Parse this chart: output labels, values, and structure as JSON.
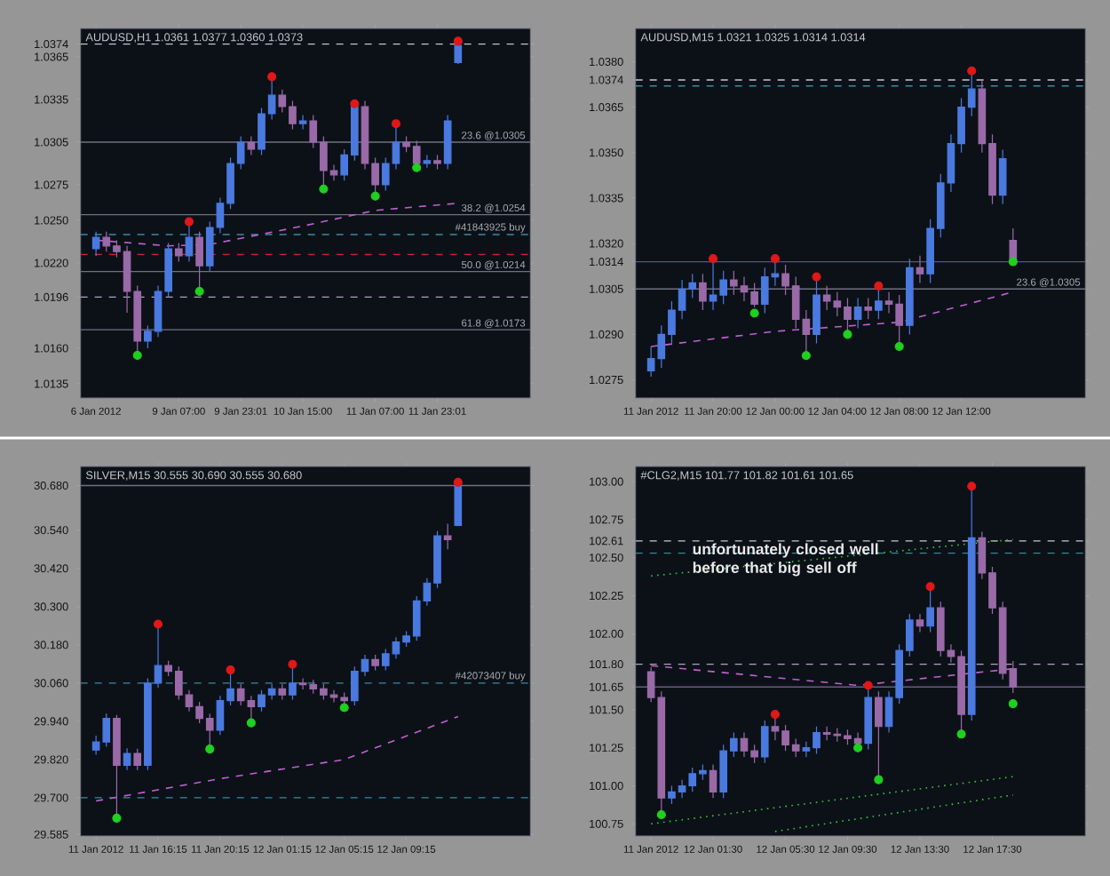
{
  "chart_data": [
    {
      "type": "candlestick",
      "title": "AUDUSD,H1  1.0361 1.0377 1.0360 1.0373",
      "categories": [
        "6 Jan 2012",
        null,
        null,
        null,
        null,
        null,
        null,
        null,
        "9 Jan 07:00",
        null,
        null,
        null,
        null,
        null,
        "9 Jan 23:01",
        null,
        null,
        null,
        null,
        null,
        "10 Jan 15:00",
        null,
        null,
        null,
        null,
        null,
        null,
        "11 Jan 07:00",
        null,
        null,
        null,
        null,
        null,
        "11 Jan 23:01",
        null,
        null
      ],
      "ohlc": [
        [
          1.023,
          1.0242,
          1.0225,
          1.0238
        ],
        [
          1.0238,
          1.0242,
          1.0228,
          1.0232
        ],
        [
          1.0232,
          1.0236,
          1.0224,
          1.0228
        ],
        [
          1.0228,
          1.0232,
          1.0185,
          1.02
        ],
        [
          1.02,
          1.0204,
          1.0155,
          1.0165
        ],
        [
          1.0165,
          1.0176,
          1.016,
          1.0172
        ],
        [
          1.0172,
          1.0204,
          1.0168,
          1.02
        ],
        [
          1.02,
          1.0234,
          1.0196,
          1.023
        ],
        [
          1.023,
          1.0234,
          1.0221,
          1.0225
        ],
        [
          1.0225,
          1.0249,
          1.0221,
          1.0238
        ],
        [
          1.0238,
          1.0242,
          1.02,
          1.0218
        ],
        [
          1.0218,
          1.0249,
          1.0214,
          1.0245
        ],
        [
          1.0245,
          1.0266,
          1.0241,
          1.0262
        ],
        [
          1.0262,
          1.0294,
          1.0258,
          1.029
        ],
        [
          1.029,
          1.0309,
          1.0286,
          1.0305
        ],
        [
          1.0305,
          1.0309,
          1.0296,
          1.03
        ],
        [
          1.03,
          1.0329,
          1.0296,
          1.0325
        ],
        [
          1.0325,
          1.0351,
          1.0321,
          1.0338
        ],
        [
          1.0338,
          1.0342,
          1.0326,
          1.033
        ],
        [
          1.033,
          1.0334,
          1.0314,
          1.0318
        ],
        [
          1.0318,
          1.0324,
          1.0314,
          1.032
        ],
        [
          1.032,
          1.0324,
          1.0301,
          1.0305
        ],
        [
          1.0305,
          1.0309,
          1.0272,
          1.0285
        ],
        [
          1.0285,
          1.0289,
          1.0278,
          1.0282
        ],
        [
          1.0282,
          1.03,
          1.0278,
          1.0296
        ],
        [
          1.0296,
          1.0332,
          1.0292,
          1.033
        ],
        [
          1.033,
          1.0334,
          1.0286,
          1.029
        ],
        [
          1.029,
          1.0294,
          1.0267,
          1.0275
        ],
        [
          1.0275,
          1.0294,
          1.0271,
          1.029
        ],
        [
          1.029,
          1.0318,
          1.0286,
          1.0305
        ],
        [
          1.0305,
          1.0309,
          1.0298,
          1.0302
        ],
        [
          1.0302,
          1.0306,
          1.0287,
          1.029
        ],
        [
          1.029,
          1.0296,
          1.0287,
          1.0292
        ],
        [
          1.0292,
          1.0296,
          1.0286,
          1.029
        ],
        [
          1.029,
          1.0324,
          1.0286,
          1.032
        ],
        [
          1.0361,
          1.0377,
          1.036,
          1.0373
        ]
      ],
      "colors": [
        "#4a7ae0",
        "#9a6aa8",
        "#9a6aa8",
        "#9a6aa8",
        "#9a6aa8",
        "#4a7ae0",
        "#4a7ae0",
        "#4a7ae0",
        "#9a6aa8",
        "#4a7ae0",
        "#9a6aa8",
        "#4a7ae0",
        "#4a7ae0",
        "#4a7ae0",
        "#4a7ae0",
        "#9a6aa8",
        "#4a7ae0",
        "#4a7ae0",
        "#9a6aa8",
        "#9a6aa8",
        "#4a7ae0",
        "#9a6aa8",
        "#9a6aa8",
        "#9a6aa8",
        "#4a7ae0",
        "#4a7ae0",
        "#9a6aa8",
        "#9a6aa8",
        "#4a7ae0",
        "#4a7ae0",
        "#9a6aa8",
        "#9a6aa8",
        "#4a7ae0",
        "#9a6aa8",
        "#4a7ae0",
        "#4a7ae0"
      ],
      "series": [
        {
          "type": "scatter",
          "marker": "circle",
          "color": "#e01818",
          "values": [
            null,
            null,
            null,
            null,
            null,
            null,
            null,
            null,
            null,
            1.0249,
            null,
            null,
            null,
            null,
            null,
            null,
            null,
            1.0351,
            null,
            null,
            null,
            null,
            null,
            null,
            null,
            1.0332,
            null,
            null,
            null,
            1.0318,
            null,
            null,
            null,
            null,
            null,
            1.0376
          ]
        },
        {
          "type": "scatter",
          "marker": "circle",
          "color": "#20d020",
          "values": [
            null,
            null,
            null,
            null,
            1.0155,
            null,
            null,
            null,
            null,
            null,
            1.02,
            null,
            null,
            null,
            null,
            null,
            null,
            null,
            null,
            null,
            null,
            null,
            1.0272,
            null,
            null,
            null,
            null,
            1.0267,
            null,
            null,
            null,
            1.0287,
            null,
            null,
            null,
            null
          ]
        },
        {
          "type": "line",
          "line_style": "dashed",
          "color": "#c060d0",
          "values": [
            1.0236,
            null,
            null,
            null,
            null,
            null,
            null,
            1.0232,
            null,
            null,
            null,
            1.0233,
            null,
            null,
            null,
            null,
            null,
            null,
            null,
            null,
            1.0246,
            null,
            null,
            null,
            null,
            null,
            null,
            1.0257,
            null,
            null,
            null,
            null,
            null,
            null,
            null,
            1.0262
          ]
        }
      ],
      "ylim": [
        1.0125,
        1.0385
      ],
      "yticks": [
        {
          "value": 1.0135,
          "label": "1.0135"
        },
        {
          "value": 1.016,
          "label": "1.0160"
        },
        {
          "value": 1.0196,
          "label": "1.0196"
        },
        {
          "value": 1.022,
          "label": "1.0220"
        },
        {
          "value": 1.025,
          "label": "1.0250"
        },
        {
          "value": 1.0275,
          "label": "1.0275"
        },
        {
          "value": 1.0305,
          "label": "1.0305"
        },
        {
          "value": 1.0335,
          "label": "1.0335"
        },
        {
          "value": 1.0365,
          "label": "1.0365"
        },
        {
          "value": 1.0374,
          "label": "1.0374"
        }
      ],
      "ref_lines": [
        {
          "axis": "y",
          "value": 1.0374,
          "color": "#c8c8d8",
          "line_style": "dashed"
        },
        {
          "axis": "y",
          "value": 1.0305,
          "label": "23.6  @1.0305",
          "color": "#707080",
          "line_style": "solid"
        },
        {
          "axis": "y",
          "value": 1.0254,
          "label": "38.2  @1.0254",
          "color": "#707080",
          "line_style": "solid"
        },
        {
          "axis": "y",
          "value": 1.0214,
          "label": "50.0  @1.0214",
          "color": "#707080",
          "line_style": "solid"
        },
        {
          "axis": "y",
          "value": 1.0173,
          "label": "61.8  @1.0173",
          "color": "#707080",
          "line_style": "solid"
        },
        {
          "axis": "y",
          "value": 1.0196,
          "color": "#b0a0c0",
          "line_style": "dashed"
        },
        {
          "axis": "y",
          "value": 1.024,
          "label": "#41843925 buy",
          "color": "#3a8aa0",
          "line_style": "dashed"
        },
        {
          "axis": "y",
          "value": 1.0226,
          "color": "#d02030",
          "line_style": "dashed"
        }
      ]
    },
    {
      "type": "candlestick",
      "title": "AUDUSD,M15  1.0321 1.0325 1.0314 1.0314",
      "categories": [
        "11 Jan 2012",
        null,
        null,
        null,
        null,
        null,
        "11 Jan 20:00",
        null,
        null,
        null,
        null,
        null,
        "12 Jan 00:00",
        null,
        null,
        null,
        null,
        null,
        "12 Jan 04:00",
        null,
        null,
        null,
        null,
        null,
        "12 Jan 08:00",
        null,
        null,
        null,
        null,
        null,
        "12 Jan 12:00",
        null,
        null,
        null,
        null,
        null
      ],
      "ohlc": [
        [
          1.0278,
          1.0286,
          1.0276,
          1.0282
        ],
        [
          1.0282,
          1.0293,
          1.0279,
          1.029
        ],
        [
          1.029,
          1.0301,
          1.0287,
          1.0298
        ],
        [
          1.0298,
          1.0308,
          1.0295,
          1.0305
        ],
        [
          1.0305,
          1.031,
          1.0302,
          1.0307
        ],
        [
          1.0307,
          1.031,
          1.0298,
          1.0301
        ],
        [
          1.0301,
          1.0315,
          1.0298,
          1.0303
        ],
        [
          1.0303,
          1.0311,
          1.03,
          1.0308
        ],
        [
          1.0308,
          1.0311,
          1.0303,
          1.0306
        ],
        [
          1.0306,
          1.0309,
          1.0301,
          1.0304
        ],
        [
          1.0304,
          1.0307,
          1.0299,
          1.03
        ],
        [
          1.03,
          1.0312,
          1.0297,
          1.0309
        ],
        [
          1.0309,
          1.0315,
          1.0306,
          1.031
        ],
        [
          1.031,
          1.0313,
          1.0303,
          1.0306
        ],
        [
          1.0306,
          1.0309,
          1.0292,
          1.0295
        ],
        [
          1.0295,
          1.0298,
          1.0283,
          1.029
        ],
        [
          1.029,
          1.0309,
          1.0287,
          1.0303
        ],
        [
          1.0303,
          1.0306,
          1.0298,
          1.0301
        ],
        [
          1.0301,
          1.0304,
          1.0296,
          1.0299
        ],
        [
          1.0299,
          1.0302,
          1.029,
          1.0295
        ],
        [
          1.0295,
          1.0302,
          1.0292,
          1.0299
        ],
        [
          1.0299,
          1.0302,
          1.0295,
          1.0298
        ],
        [
          1.0298,
          1.0306,
          1.0295,
          1.0301
        ],
        [
          1.0301,
          1.0304,
          1.0297,
          1.03
        ],
        [
          1.03,
          1.0303,
          1.0286,
          1.0293
        ],
        [
          1.0293,
          1.0315,
          1.029,
          1.0312
        ],
        [
          1.0312,
          1.0316,
          1.0307,
          1.031
        ],
        [
          1.031,
          1.0328,
          1.0307,
          1.0325
        ],
        [
          1.0325,
          1.0343,
          1.0322,
          1.034
        ],
        [
          1.034,
          1.0356,
          1.0337,
          1.0353
        ],
        [
          1.0353,
          1.0368,
          1.035,
          1.0365
        ],
        [
          1.0365,
          1.0377,
          1.0362,
          1.0371
        ],
        [
          1.0371,
          1.0374,
          1.035,
          1.0353
        ],
        [
          1.0353,
          1.0356,
          1.0333,
          1.0336
        ],
        [
          1.0336,
          1.0351,
          1.0333,
          1.0348
        ],
        [
          1.0321,
          1.0325,
          1.0314,
          1.0314
        ]
      ],
      "colors": [
        "#4a7ae0",
        "#4a7ae0",
        "#4a7ae0",
        "#4a7ae0",
        "#4a7ae0",
        "#9a6aa8",
        "#4a7ae0",
        "#4a7ae0",
        "#9a6aa8",
        "#9a6aa8",
        "#9a6aa8",
        "#4a7ae0",
        "#4a7ae0",
        "#9a6aa8",
        "#9a6aa8",
        "#9a6aa8",
        "#4a7ae0",
        "#9a6aa8",
        "#9a6aa8",
        "#9a6aa8",
        "#4a7ae0",
        "#9a6aa8",
        "#4a7ae0",
        "#9a6aa8",
        "#9a6aa8",
        "#4a7ae0",
        "#9a6aa8",
        "#4a7ae0",
        "#4a7ae0",
        "#4a7ae0",
        "#4a7ae0",
        "#4a7ae0",
        "#9a6aa8",
        "#9a6aa8",
        "#4a7ae0",
        "#9a6aa8"
      ],
      "series": [
        {
          "type": "scatter",
          "marker": "circle",
          "color": "#e01818",
          "values": [
            null,
            null,
            null,
            null,
            null,
            null,
            1.0315,
            null,
            null,
            null,
            null,
            null,
            1.0315,
            null,
            null,
            null,
            1.0309,
            null,
            null,
            null,
            null,
            null,
            1.0306,
            null,
            null,
            null,
            null,
            null,
            null,
            null,
            null,
            1.0377,
            null,
            null,
            null,
            null
          ]
        },
        {
          "type": "scatter",
          "marker": "circle",
          "color": "#20d020",
          "values": [
            null,
            null,
            null,
            null,
            null,
            null,
            null,
            null,
            null,
            null,
            1.0297,
            null,
            null,
            null,
            null,
            1.0283,
            null,
            null,
            null,
            1.029,
            null,
            null,
            null,
            null,
            1.0286,
            null,
            null,
            null,
            null,
            null,
            null,
            null,
            null,
            null,
            null,
            1.0314
          ]
        },
        {
          "type": "line",
          "line_style": "dashed",
          "color": "#c060d0",
          "values": [
            1.0286,
            null,
            null,
            null,
            null,
            null,
            null,
            null,
            null,
            null,
            null,
            null,
            1.0291,
            null,
            null,
            null,
            null,
            null,
            null,
            null,
            null,
            null,
            null,
            null,
            1.0294,
            null,
            null,
            null,
            null,
            null,
            null,
            null,
            null,
            null,
            null,
            1.0304
          ]
        }
      ],
      "ylim": [
        1.0269,
        1.0391
      ],
      "yticks": [
        {
          "value": 1.0275,
          "label": "1.0275"
        },
        {
          "value": 1.029,
          "label": "1.0290"
        },
        {
          "value": 1.0305,
          "label": "1.0305"
        },
        {
          "value": 1.0314,
          "label": "1.0314"
        },
        {
          "value": 1.032,
          "label": "1.0320"
        },
        {
          "value": 1.0335,
          "label": "1.0335"
        },
        {
          "value": 1.035,
          "label": "1.0350"
        },
        {
          "value": 1.0365,
          "label": "1.0365"
        },
        {
          "value": 1.0374,
          "label": "1.0374"
        },
        {
          "value": 1.038,
          "label": "1.0380"
        }
      ],
      "ref_lines": [
        {
          "axis": "y",
          "value": 1.0374,
          "color": "#c8c8d8",
          "line_style": "dashed"
        },
        {
          "axis": "y",
          "value": 1.0372,
          "color": "#3a8aa0",
          "line_style": "dashed"
        },
        {
          "axis": "y",
          "value": 1.0314,
          "color": "#5050a0",
          "line_style": "solid"
        },
        {
          "axis": "y",
          "value": 1.0305,
          "label": "23.6  @1.0305",
          "color": "#707080",
          "line_style": "solid"
        }
      ]
    },
    {
      "type": "candlestick",
      "title": "SILVER,M15  30.555 30.690 30.555 30.680",
      "categories": [
        "11 Jan 2012",
        null,
        null,
        null,
        null,
        null,
        "11 Jan 16:15",
        null,
        null,
        null,
        null,
        null,
        "11 Jan 20:15",
        null,
        null,
        null,
        null,
        null,
        "12 Jan 01:15",
        null,
        null,
        null,
        null,
        null,
        "12 Jan 05:15",
        null,
        null,
        null,
        null,
        null,
        "12 Jan 09:15",
        null,
        null,
        null,
        null,
        null
      ],
      "ohlc": [
        [
          29.85,
          29.895,
          29.835,
          29.875
        ],
        [
          29.875,
          29.965,
          29.86,
          29.949
        ],
        [
          29.949,
          29.96,
          29.636,
          29.802
        ],
        [
          29.802,
          29.855,
          29.787,
          29.839
        ],
        [
          29.839,
          29.854,
          29.787,
          29.802
        ],
        [
          29.802,
          30.075,
          29.787,
          30.06
        ],
        [
          30.06,
          30.245,
          30.045,
          30.115
        ],
        [
          30.115,
          30.13,
          30.082,
          30.097
        ],
        [
          30.097,
          30.112,
          30.008,
          30.023
        ],
        [
          30.023,
          30.038,
          29.971,
          29.986
        ],
        [
          29.986,
          30.001,
          29.934,
          29.949
        ],
        [
          29.949,
          29.964,
          29.853,
          29.912
        ],
        [
          29.912,
          30.02,
          29.897,
          30.005
        ],
        [
          30.005,
          30.101,
          29.99,
          30.042
        ],
        [
          30.042,
          30.057,
          29.99,
          30.005
        ],
        [
          30.005,
          30.02,
          29.935,
          29.986
        ],
        [
          29.986,
          30.038,
          29.971,
          30.023
        ],
        [
          30.023,
          30.057,
          30.008,
          30.042
        ],
        [
          30.042,
          30.057,
          30.008,
          30.023
        ],
        [
          30.023,
          30.119,
          30.008,
          30.06
        ],
        [
          30.06,
          30.075,
          30.04,
          30.055
        ],
        [
          30.055,
          30.07,
          30.027,
          30.042
        ],
        [
          30.042,
          30.057,
          30.008,
          30.023
        ],
        [
          30.023,
          30.038,
          30.0,
          30.015
        ],
        [
          30.015,
          30.03,
          29.983,
          30.005
        ],
        [
          30.005,
          30.112,
          29.99,
          30.097
        ],
        [
          30.097,
          30.149,
          30.082,
          30.134
        ],
        [
          30.134,
          30.149,
          30.1,
          30.115
        ],
        [
          30.115,
          30.167,
          30.1,
          30.152
        ],
        [
          30.152,
          30.204,
          30.137,
          30.189
        ],
        [
          30.189,
          30.223,
          30.174,
          30.208
        ],
        [
          30.208,
          30.333,
          30.193,
          30.318
        ],
        [
          30.318,
          30.389,
          30.303,
          30.374
        ],
        [
          30.374,
          30.537,
          30.359,
          30.522
        ],
        [
          30.522,
          30.56,
          30.48,
          30.51
        ],
        [
          30.555,
          30.69,
          30.555,
          30.68
        ]
      ],
      "colors": [
        "#4a7ae0",
        "#4a7ae0",
        "#9a6aa8",
        "#4a7ae0",
        "#9a6aa8",
        "#4a7ae0",
        "#4a7ae0",
        "#9a6aa8",
        "#9a6aa8",
        "#9a6aa8",
        "#9a6aa8",
        "#9a6aa8",
        "#4a7ae0",
        "#4a7ae0",
        "#9a6aa8",
        "#9a6aa8",
        "#4a7ae0",
        "#4a7ae0",
        "#9a6aa8",
        "#4a7ae0",
        "#9a6aa8",
        "#9a6aa8",
        "#9a6aa8",
        "#9a6aa8",
        "#9a6aa8",
        "#4a7ae0",
        "#4a7ae0",
        "#9a6aa8",
        "#4a7ae0",
        "#4a7ae0",
        "#4a7ae0",
        "#4a7ae0",
        "#4a7ae0",
        "#4a7ae0",
        "#9a6aa8",
        "#4a7ae0"
      ],
      "series": [
        {
          "type": "scatter",
          "marker": "circle",
          "color": "#e01818",
          "values": [
            null,
            null,
            null,
            null,
            null,
            null,
            30.245,
            null,
            null,
            null,
            null,
            null,
            null,
            30.101,
            null,
            null,
            null,
            null,
            null,
            30.119,
            null,
            null,
            null,
            null,
            null,
            null,
            null,
            null,
            null,
            null,
            null,
            null,
            null,
            null,
            null,
            30.69
          ]
        },
        {
          "type": "scatter",
          "marker": "circle",
          "color": "#20d020",
          "values": [
            null,
            null,
            29.636,
            null,
            null,
            null,
            null,
            null,
            null,
            null,
            null,
            29.853,
            null,
            null,
            null,
            29.935,
            null,
            null,
            null,
            null,
            null,
            null,
            null,
            null,
            29.983,
            null,
            null,
            null,
            null,
            null,
            null,
            null,
            null,
            null,
            null,
            null
          ]
        },
        {
          "type": "line",
          "line_style": "dashed",
          "color": "#c060d0",
          "values": [
            29.69,
            null,
            null,
            null,
            null,
            null,
            null,
            null,
            null,
            null,
            null,
            null,
            29.76,
            null,
            null,
            null,
            null,
            null,
            null,
            null,
            null,
            null,
            null,
            null,
            29.82,
            null,
            null,
            null,
            null,
            null,
            null,
            null,
            null,
            null,
            null,
            29.955
          ]
        }
      ],
      "ylim": [
        29.58,
        30.74
      ],
      "yticks": [
        {
          "value": 29.585,
          "label": "29.585"
        },
        {
          "value": 29.7,
          "label": "29.700"
        },
        {
          "value": 29.82,
          "label": "29.820"
        },
        {
          "value": 29.94,
          "label": "29.940"
        },
        {
          "value": 30.06,
          "label": "30.060"
        },
        {
          "value": 30.18,
          "label": "30.180"
        },
        {
          "value": 30.3,
          "label": "30.300"
        },
        {
          "value": 30.42,
          "label": "30.420"
        },
        {
          "value": 30.54,
          "label": "30.540"
        },
        {
          "value": 30.68,
          "label": "30.680"
        }
      ],
      "ref_lines": [
        {
          "axis": "y",
          "value": 30.68,
          "color": "#707080",
          "line_style": "solid"
        },
        {
          "axis": "y",
          "value": 30.06,
          "label": "#42073407 buy",
          "color": "#3a8aa0",
          "line_style": "dashed"
        },
        {
          "axis": "y",
          "value": 29.7,
          "color": "#3a8aa0",
          "line_style": "dashed"
        }
      ]
    },
    {
      "type": "candlestick",
      "title": "#CLG2,M15  101.77 101.82 101.61 101.65",
      "categories": [
        "11 Jan 2012",
        null,
        null,
        null,
        null,
        null,
        "12 Jan 01:30",
        null,
        null,
        null,
        null,
        null,
        null,
        "12 Jan 05:30",
        null,
        null,
        null,
        null,
        null,
        "12 Jan 09:30",
        null,
        null,
        null,
        null,
        null,
        null,
        "12 Jan 13:30",
        null,
        null,
        null,
        null,
        null,
        null,
        "12 Jan 17:30",
        null,
        null
      ],
      "ohlc": [
        [
          101.75,
          101.78,
          101.55,
          101.58
        ],
        [
          101.58,
          101.62,
          100.81,
          100.92
        ],
        [
          100.92,
          101.0,
          100.88,
          100.96
        ],
        [
          100.96,
          101.04,
          100.92,
          101.0
        ],
        [
          101.0,
          101.12,
          100.96,
          101.08
        ],
        [
          101.08,
          101.14,
          101.04,
          101.1
        ],
        [
          101.1,
          101.14,
          100.92,
          100.96
        ],
        [
          100.96,
          101.27,
          100.92,
          101.23
        ],
        [
          101.23,
          101.35,
          101.19,
          101.31
        ],
        [
          101.31,
          101.35,
          101.19,
          101.23
        ],
        [
          101.23,
          101.27,
          101.15,
          101.19
        ],
        [
          101.19,
          101.43,
          101.15,
          101.39
        ],
        [
          101.39,
          101.47,
          101.3,
          101.36
        ],
        [
          101.36,
          101.4,
          101.23,
          101.27
        ],
        [
          101.27,
          101.31,
          101.19,
          101.23
        ],
        [
          101.23,
          101.29,
          101.19,
          101.25
        ],
        [
          101.25,
          101.39,
          101.21,
          101.35
        ],
        [
          101.35,
          101.39,
          101.3,
          101.34
        ],
        [
          101.34,
          101.38,
          101.29,
          101.33
        ],
        [
          101.33,
          101.37,
          101.27,
          101.31
        ],
        [
          101.31,
          101.35,
          101.25,
          101.28
        ],
        [
          101.28,
          101.66,
          101.24,
          101.58
        ],
        [
          101.58,
          101.62,
          101.04,
          101.39
        ],
        [
          101.39,
          101.62,
          101.35,
          101.58
        ],
        [
          101.58,
          101.93,
          101.54,
          101.89
        ],
        [
          101.89,
          102.13,
          101.85,
          102.09
        ],
        [
          102.09,
          102.13,
          102.01,
          102.05
        ],
        [
          102.05,
          102.31,
          102.01,
          102.17
        ],
        [
          102.17,
          102.21,
          101.85,
          101.89
        ],
        [
          101.89,
          101.93,
          101.81,
          101.85
        ],
        [
          101.85,
          101.89,
          101.34,
          101.47
        ],
        [
          101.47,
          102.97,
          101.43,
          102.63
        ],
        [
          102.63,
          102.67,
          102.36,
          102.4
        ],
        [
          102.4,
          102.44,
          102.13,
          102.17
        ],
        [
          102.17,
          102.21,
          101.7,
          101.74
        ],
        [
          101.77,
          101.82,
          101.61,
          101.65
        ]
      ],
      "colors": [
        "#9a6aa8",
        "#9a6aa8",
        "#4a7ae0",
        "#4a7ae0",
        "#4a7ae0",
        "#4a7ae0",
        "#9a6aa8",
        "#4a7ae0",
        "#4a7ae0",
        "#9a6aa8",
        "#9a6aa8",
        "#4a7ae0",
        "#9a6aa8",
        "#9a6aa8",
        "#9a6aa8",
        "#4a7ae0",
        "#4a7ae0",
        "#9a6aa8",
        "#9a6aa8",
        "#9a6aa8",
        "#9a6aa8",
        "#4a7ae0",
        "#9a6aa8",
        "#4a7ae0",
        "#4a7ae0",
        "#4a7ae0",
        "#9a6aa8",
        "#4a7ae0",
        "#9a6aa8",
        "#9a6aa8",
        "#9a6aa8",
        "#4a7ae0",
        "#9a6aa8",
        "#9a6aa8",
        "#9a6aa8",
        "#9a6aa8"
      ],
      "series": [
        {
          "type": "scatter",
          "marker": "circle",
          "color": "#e01818",
          "values": [
            null,
            null,
            null,
            null,
            null,
            null,
            null,
            null,
            null,
            null,
            null,
            null,
            101.47,
            null,
            null,
            null,
            null,
            null,
            null,
            null,
            null,
            101.66,
            null,
            null,
            null,
            null,
            null,
            102.31,
            null,
            null,
            null,
            102.97,
            null,
            null,
            null,
            null
          ]
        },
        {
          "type": "scatter",
          "marker": "circle",
          "color": "#20d020",
          "values": [
            null,
            100.81,
            null,
            null,
            null,
            null,
            null,
            null,
            null,
            null,
            null,
            null,
            null,
            null,
            null,
            null,
            null,
            null,
            null,
            null,
            101.25,
            null,
            101.04,
            null,
            null,
            null,
            null,
            null,
            null,
            null,
            101.34,
            null,
            null,
            null,
            null,
            101.54
          ]
        },
        {
          "type": "line",
          "line_style": "dashed",
          "color": "#c060d0",
          "values": [
            101.79,
            null,
            null,
            null,
            null,
            null,
            null,
            null,
            null,
            null,
            null,
            null,
            null,
            null,
            null,
            null,
            null,
            null,
            null,
            null,
            101.66,
            null,
            null,
            null,
            null,
            null,
            null,
            null,
            null,
            null,
            null,
            null,
            null,
            null,
            null,
            101.77
          ]
        },
        {
          "type": "line",
          "line_style": "dotted",
          "color": "#3cc83c",
          "values": [
            102.38,
            null,
            null,
            null,
            null,
            null,
            null,
            null,
            null,
            null,
            null,
            null,
            null,
            null,
            null,
            null,
            null,
            null,
            null,
            null,
            null,
            null,
            null,
            null,
            null,
            null,
            null,
            null,
            null,
            null,
            null,
            null,
            null,
            null,
            null,
            102.62
          ]
        },
        {
          "type": "line",
          "line_style": "dotted",
          "color": "#3cc83c",
          "values": [
            100.75,
            null,
            null,
            null,
            null,
            null,
            null,
            null,
            null,
            null,
            null,
            null,
            null,
            null,
            null,
            null,
            null,
            null,
            null,
            null,
            null,
            null,
            null,
            null,
            null,
            null,
            null,
            null,
            null,
            null,
            null,
            null,
            null,
            null,
            null,
            101.06
          ]
        },
        {
          "type": "line",
          "line_style": "dotted",
          "color": "#3cc83c",
          "values": [
            null,
            null,
            null,
            null,
            null,
            null,
            null,
            null,
            null,
            null,
            null,
            null,
            100.7,
            null,
            null,
            null,
            null,
            null,
            null,
            null,
            null,
            null,
            null,
            null,
            null,
            null,
            null,
            null,
            null,
            null,
            null,
            null,
            null,
            null,
            null,
            100.94
          ]
        }
      ],
      "ylim": [
        100.67,
        103.1
      ],
      "yticks": [
        {
          "value": 100.75,
          "label": "100.75"
        },
        {
          "value": 101.0,
          "label": "101.00"
        },
        {
          "value": 101.25,
          "label": "101.25"
        },
        {
          "value": 101.5,
          "label": "101.50"
        },
        {
          "value": 101.65,
          "label": "101.65"
        },
        {
          "value": 101.8,
          "label": "101.80"
        },
        {
          "value": 102.0,
          "label": "102.00"
        },
        {
          "value": 102.25,
          "label": "102.25"
        },
        {
          "value": 102.5,
          "label": "102.50"
        },
        {
          "value": 102.61,
          "label": "102.61"
        },
        {
          "value": 102.75,
          "label": "102.75"
        },
        {
          "value": 103.0,
          "label": "103.00"
        }
      ],
      "ref_lines": [
        {
          "axis": "y",
          "value": 102.61,
          "color": "#c8c8d8",
          "line_style": "dashed"
        },
        {
          "axis": "y",
          "value": 102.53,
          "color": "#3a8aa0",
          "line_style": "dashed"
        },
        {
          "axis": "y",
          "value": 101.8,
          "color": "#b0a0c0",
          "line_style": "dashed"
        },
        {
          "axis": "y",
          "value": 101.65,
          "color": "#6a5a80",
          "line_style": "solid"
        }
      ],
      "annotations": [
        "unfortunately closed well before that big sell off"
      ]
    }
  ]
}
